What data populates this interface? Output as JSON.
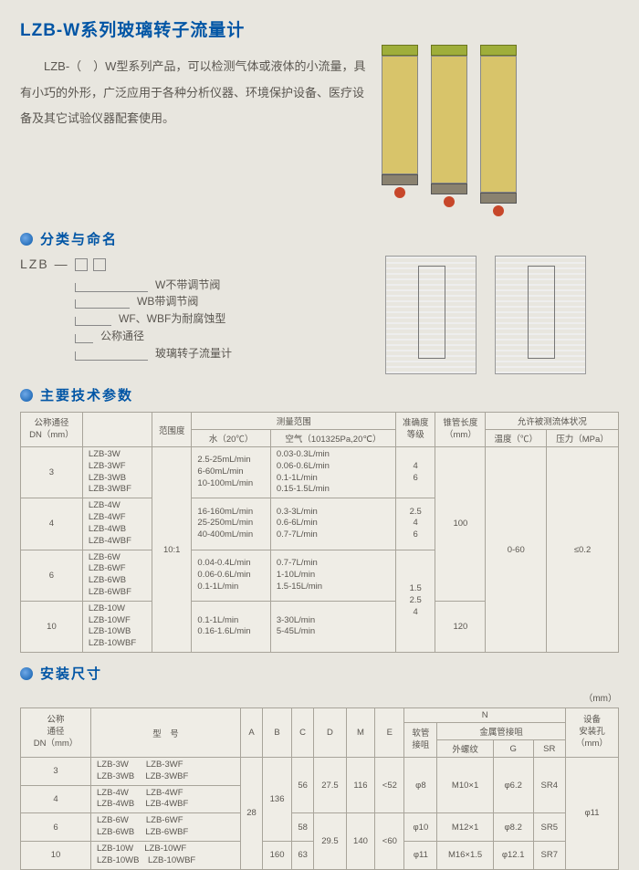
{
  "title": "LZB-W系列玻璃转子流量计",
  "intro": "LZB-（　）W型系列产品，可以检测气体或液体的小流量，具有小巧的外形，广泛应用于各种分析仪器、环境保护设备、医疗设备及其它试验仪器配套使用。",
  "sections": {
    "naming": "分类与命名",
    "specs": "主要技术参数",
    "install": "安装尺寸"
  },
  "naming": {
    "code": "LZB —",
    "lines": [
      "W不带调节阀",
      "WB带调节阀",
      "WF、WBF为耐腐蚀型",
      "公称通径",
      "玻璃转子流量计"
    ]
  },
  "t1": {
    "head": {
      "dn": "公称通径\nDN（mm）",
      "range_ratio": "范围度",
      "meas": "测量范围",
      "water": "水（20℃）",
      "air": "空气（101325Pa,20℃）",
      "accuracy": "准确度\n等级",
      "cone": "锥管长度\n（mm）",
      "cond": "允许被测流体状况",
      "temp": "温度（℃）",
      "press": "压力（MPa）"
    },
    "rows": [
      {
        "dn": "3",
        "models": "LZB-3W\nLZB-3WF\nLZB-3WB\nLZB-3WBF",
        "water": "2.5-25mL/min\n6-60mL/min\n10-100mL/min",
        "air": "0.03-0.3L/min\n0.06-0.6L/min\n0.1-1L/min\n0.15-1.5L/min",
        "acc": "4\n6"
      },
      {
        "dn": "4",
        "models": "LZB-4W\nLZB-4WF\nLZB-4WB\nLZB-4WBF",
        "water": "16-160mL/min\n25-250mL/min\n40-400mL/min",
        "air": "0.3-3L/min\n0.6-6L/min\n0.7-7L/min",
        "acc": "2.5\n4\n6"
      },
      {
        "dn": "6",
        "models": "LZB-6W\nLZB-6WF\nLZB-6WB\nLZB-6WBF",
        "water": "0.04-0.4L/min\n0.06-0.6L/min\n0.1-1L/min",
        "air": "0.7-7L/min\n1-10L/min\n1.5-15L/min",
        "acc": ""
      },
      {
        "dn": "10",
        "models": "LZB-10W\nLZB-10WF\nLZB-10WB\nLZB-10WBF",
        "water": "0.1-1L/min\n0.16-1.6L/min",
        "air": "3-30L/min\n5-45L/min",
        "acc": "1.5\n2.5\n4"
      }
    ],
    "shared": {
      "ratio": "10:1",
      "cone1": "100",
      "cone2": "120",
      "temp": "0-60",
      "press": "≤0.2"
    }
  },
  "t2": {
    "unit": "（mm）",
    "head": {
      "dn": "公称\n通径\nDN（mm）",
      "model": "型　号",
      "a": "A",
      "b": "B",
      "c": "C",
      "d": "D",
      "m": "M",
      "e": "E",
      "n": "N",
      "hose": "软管\n接咀",
      "metal": "金属管接咀",
      "ext": "外螺纹",
      "g": "G",
      "sr": "SR",
      "hole": "设备\n安装孔\n（mm）"
    },
    "rows": [
      {
        "dn": "3",
        "models": "LZB-3W　　LZB-3WF\nLZB-3WB　 LZB-3WBF"
      },
      {
        "dn": "4",
        "models": "LZB-4W　　LZB-4WF\nLZB-4WB　 LZB-4WBF"
      },
      {
        "dn": "6",
        "models": "LZB-6W　　LZB-6WF\nLZB-6WB　 LZB-6WBF"
      },
      {
        "dn": "10",
        "models": "LZB-10W　 LZB-10WF\nLZB-10WB　LZB-10WBF"
      }
    ],
    "vals": {
      "a": "28",
      "b1": "136",
      "b2": "160",
      "c1": "56",
      "c2": "58",
      "c3": "63",
      "d1": "27.5",
      "d2": "29.5",
      "m1": "116",
      "m2": "140",
      "e1": "<52",
      "e2": "<60",
      "hose1": "φ8",
      "hose2": "φ10",
      "hose3": "φ11",
      "ext1": "M10×1",
      "ext2": "M12×1",
      "ext3": "M16×1.5",
      "g1": "φ6.2",
      "g2": "φ8.2",
      "g3": "φ12.1",
      "sr1": "SR4",
      "sr2": "SR5",
      "sr3": "SR7",
      "hole": "φ11"
    }
  }
}
